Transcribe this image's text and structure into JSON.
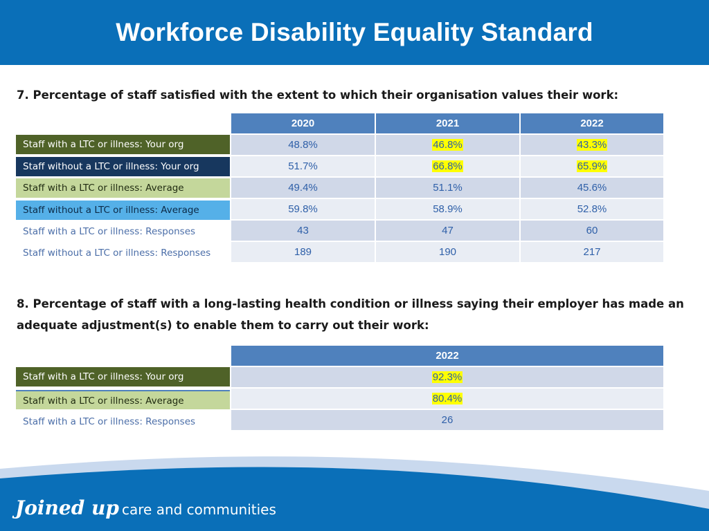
{
  "title": "Workforce Disability Equality Standard",
  "q7": {
    "question": "7. Percentage of staff satisfied with the extent to which their organisation values their work:",
    "years": [
      "2020",
      "2021",
      "2022"
    ],
    "rows": [
      {
        "label": "Staff with a LTC or illness: Your org",
        "values": [
          "48.8%",
          "46.8%",
          "43.3%"
        ]
      },
      {
        "label": "Staff without a LTC or illness: Your org",
        "values": [
          "51.7%",
          "66.8%",
          "65.9%"
        ]
      },
      {
        "label": "Staff with a LTC or illness: Average",
        "values": [
          "49.4%",
          "51.1%",
          "45.6%"
        ]
      },
      {
        "label": "Staff without a LTC or illness: Average",
        "values": [
          "59.8%",
          "58.9%",
          "52.8%"
        ]
      },
      {
        "label": "Staff with a LTC or illness: Responses",
        "values": [
          "43",
          "47",
          "60"
        ]
      },
      {
        "label": "Staff without a LTC or illness: Responses",
        "values": [
          "189",
          "190",
          "217"
        ]
      }
    ]
  },
  "q8": {
    "question": "8. Percentage of staff with a long-lasting health condition or illness saying their employer has made an adequate adjustment(s) to enable them to carry out their work:",
    "years": [
      "2022"
    ],
    "rows": [
      {
        "label": "Staff with a LTC or illness: Your org",
        "values": [
          "92.3%"
        ]
      },
      {
        "label": "Staff with a LTC or illness: Average",
        "values": [
          "80.4%"
        ]
      },
      {
        "label": "Staff with a LTC or illness: Responses",
        "values": [
          "26"
        ]
      }
    ]
  },
  "highlight_color": "#ffff00",
  "header_color": "#0a6fb8",
  "logo": {
    "bold": "Joined up",
    "rest": "care and communities"
  }
}
